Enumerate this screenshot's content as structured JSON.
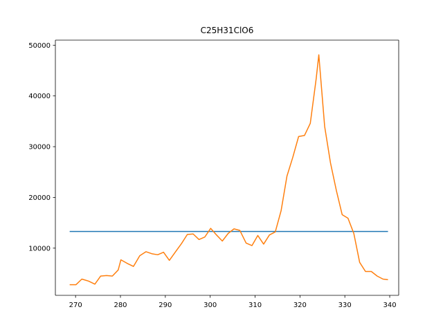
{
  "chart_data": {
    "type": "line",
    "title": "C25H31ClO6",
    "xlabel": "",
    "ylabel": "",
    "xlim": [
      265.5,
      342.0
    ],
    "ylim": [
      700,
      51000
    ],
    "xticks": [
      270,
      280,
      290,
      300,
      310,
      320,
      330,
      340
    ],
    "yticks": [
      10000,
      20000,
      30000,
      40000,
      50000
    ],
    "grid": false,
    "legend": "none",
    "series": [
      {
        "color": "#1f77b4",
        "x": [
          268.8,
          339.5
        ],
        "y": [
          13300,
          13300
        ]
      },
      {
        "color": "#ff7f0e",
        "x": [
          268.8,
          270.1,
          271.4,
          272.9,
          274.3,
          275.6,
          276.9,
          278.2,
          279.5,
          280.1,
          281.5,
          282.9,
          284.3,
          285.7,
          287.0,
          288.3,
          289.6,
          290.9,
          292.2,
          293.6,
          294.9,
          296.2,
          297.5,
          298.8,
          300.1,
          301.4,
          302.7,
          304.0,
          305.3,
          306.6,
          308.0,
          309.3,
          310.6,
          311.9,
          313.2,
          314.5,
          315.8,
          317.1,
          318.4,
          319.7,
          321.0,
          322.3,
          323.6,
          324.2,
          325.5,
          326.8,
          328.1,
          329.4,
          330.7,
          332.0,
          333.3,
          334.6,
          335.9,
          337.2,
          338.5,
          339.5
        ],
        "y": [
          2800,
          2800,
          3900,
          3500,
          2900,
          4500,
          4600,
          4500,
          5700,
          7700,
          7000,
          6400,
          8500,
          9300,
          8900,
          8700,
          9200,
          7600,
          9200,
          10900,
          12700,
          12800,
          11700,
          12200,
          13900,
          12600,
          11400,
          12900,
          13800,
          13500,
          11000,
          10500,
          12500,
          10800,
          12600,
          13200,
          17400,
          24200,
          27900,
          32000,
          32200,
          34600,
          43300,
          48100,
          34000,
          26800,
          21400,
          16600,
          15900,
          12900,
          7200,
          5400,
          5400,
          4500,
          3900,
          3800
        ]
      }
    ]
  }
}
